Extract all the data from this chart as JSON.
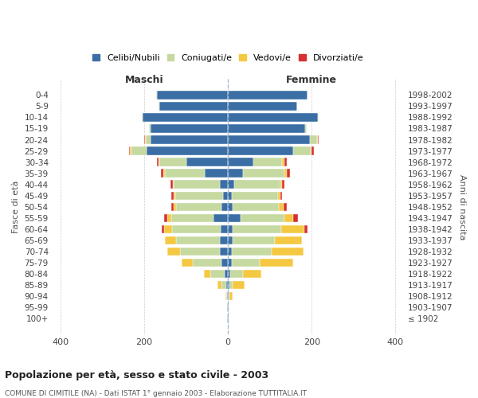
{
  "age_groups": [
    "100+",
    "95-99",
    "90-94",
    "85-89",
    "80-84",
    "75-79",
    "70-74",
    "65-69",
    "60-64",
    "55-59",
    "50-54",
    "45-49",
    "40-44",
    "35-39",
    "30-34",
    "25-29",
    "20-24",
    "15-19",
    "10-14",
    "5-9",
    "0-4"
  ],
  "birth_years": [
    "≤ 1902",
    "1903-1907",
    "1908-1912",
    "1913-1917",
    "1918-1922",
    "1923-1927",
    "1928-1932",
    "1933-1937",
    "1938-1942",
    "1943-1947",
    "1948-1952",
    "1953-1957",
    "1958-1962",
    "1963-1967",
    "1968-1972",
    "1973-1977",
    "1978-1982",
    "1983-1987",
    "1988-1992",
    "1993-1997",
    "1998-2002"
  ],
  "maschi": {
    "celibi": [
      2,
      2,
      3,
      5,
      8,
      15,
      20,
      20,
      18,
      35,
      15,
      12,
      20,
      55,
      100,
      195,
      185,
      185,
      205,
      165,
      170
    ],
    "coniugati": [
      0,
      0,
      2,
      10,
      35,
      70,
      95,
      105,
      115,
      100,
      110,
      115,
      110,
      95,
      65,
      35,
      12,
      3,
      2,
      1,
      1
    ],
    "vedovi": [
      0,
      0,
      2,
      10,
      15,
      25,
      30,
      25,
      20,
      10,
      5,
      3,
      2,
      5,
      2,
      5,
      2,
      0,
      0,
      0,
      0
    ],
    "divorziati": [
      0,
      0,
      0,
      0,
      0,
      0,
      0,
      0,
      5,
      8,
      5,
      5,
      5,
      5,
      2,
      2,
      1,
      0,
      0,
      0,
      0
    ]
  },
  "femmine": {
    "nubili": [
      2,
      1,
      2,
      3,
      5,
      10,
      10,
      12,
      12,
      30,
      12,
      10,
      15,
      35,
      60,
      155,
      195,
      185,
      215,
      165,
      190
    ],
    "coniugate": [
      0,
      0,
      2,
      8,
      30,
      65,
      95,
      100,
      115,
      105,
      110,
      110,
      110,
      100,
      70,
      42,
      18,
      4,
      2,
      1,
      1
    ],
    "vedove": [
      0,
      1,
      8,
      28,
      45,
      80,
      75,
      65,
      55,
      20,
      10,
      5,
      5,
      5,
      5,
      3,
      2,
      0,
      0,
      0,
      0
    ],
    "divorziate": [
      0,
      0,
      0,
      0,
      0,
      0,
      0,
      0,
      8,
      12,
      8,
      5,
      5,
      8,
      5,
      5,
      2,
      0,
      0,
      0,
      0
    ]
  },
  "colors": {
    "celibi": "#3a6ea5",
    "coniugati": "#c5d9a0",
    "vedovi": "#f5c842",
    "divorziati": "#d63030"
  },
  "xlim": [
    -420,
    420
  ],
  "xticks": [
    -400,
    -200,
    0,
    200,
    400
  ],
  "xticklabels": [
    "400",
    "200",
    "0",
    "200",
    "400"
  ],
  "title": "Popolazione per età, sesso e stato civile - 2003",
  "subtitle": "COMUNE DI CIMITILE (NA) - Dati ISTAT 1° gennaio 2003 - Elaborazione TUTTITALIA.IT",
  "ylabel_left": "Fasce di età",
  "ylabel_right": "Anni di nascita",
  "maschi_label": "Maschi",
  "femmine_label": "Femmine",
  "legend_labels": [
    "Celibi/Nubili",
    "Coniugati/e",
    "Vedovi/e",
    "Divorziati/e"
  ],
  "background_color": "#ffffff",
  "grid_color": "#cccccc"
}
